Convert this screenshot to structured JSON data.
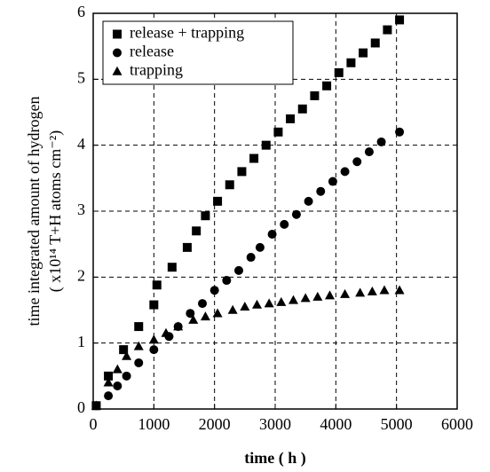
{
  "chart_data": {
    "type": "scatter",
    "xlabel": "time ( h )",
    "ylabel": [
      "time integrated amount of hydrogen",
      "( x10¹⁴ T+H atoms cm⁻²)"
    ],
    "xlim": [
      0,
      6000
    ],
    "xticks": [
      0,
      1000,
      2000,
      3000,
      4000,
      5000,
      6000
    ],
    "ylim": [
      0,
      6
    ],
    "yticks": [
      0,
      1,
      2,
      3,
      4,
      5,
      6
    ],
    "grid": true,
    "legend": "upper left",
    "series": [
      {
        "name": "release + trapping",
        "color": "#000000",
        "marker": "square",
        "x": [
          50,
          250,
          500,
          750,
          1000,
          1050,
          1300,
          1550,
          1700,
          1850,
          2050,
          2250,
          2450,
          2650,
          2850,
          3050,
          3250,
          3450,
          3650,
          3850,
          4050,
          4250,
          4450,
          4650,
          4850,
          5050
        ],
        "values": [
          0.05,
          0.5,
          0.9,
          1.25,
          1.58,
          1.88,
          2.15,
          2.45,
          2.7,
          2.93,
          3.15,
          3.4,
          3.6,
          3.8,
          4.0,
          4.2,
          4.4,
          4.55,
          4.75,
          4.9,
          5.1,
          5.25,
          5.4,
          5.55,
          5.75,
          5.9
        ]
      },
      {
        "name": "release",
        "color": "#000000",
        "marker": "circle",
        "x": [
          50,
          250,
          400,
          550,
          750,
          1000,
          1250,
          1400,
          1600,
          1800,
          2000,
          2200,
          2400,
          2600,
          2750,
          2950,
          3150,
          3350,
          3550,
          3750,
          3950,
          4150,
          4350,
          4550,
          4750,
          5050
        ],
        "values": [
          0.05,
          0.2,
          0.35,
          0.5,
          0.7,
          0.9,
          1.1,
          1.25,
          1.45,
          1.6,
          1.8,
          1.95,
          2.1,
          2.3,
          2.45,
          2.65,
          2.8,
          2.95,
          3.15,
          3.3,
          3.45,
          3.6,
          3.75,
          3.9,
          4.05,
          4.2
        ]
      },
      {
        "name": "trapping",
        "color": "#000000",
        "marker": "triangle",
        "x": [
          50,
          250,
          400,
          550,
          750,
          1000,
          1200,
          1400,
          1650,
          1850,
          2050,
          2300,
          2500,
          2700,
          2900,
          3100,
          3300,
          3500,
          3700,
          3900,
          4150,
          4400,
          4600,
          4800,
          5050
        ],
        "values": [
          0.05,
          0.4,
          0.6,
          0.8,
          0.95,
          1.05,
          1.15,
          1.25,
          1.35,
          1.4,
          1.45,
          1.5,
          1.55,
          1.58,
          1.6,
          1.62,
          1.65,
          1.68,
          1.7,
          1.72,
          1.74,
          1.76,
          1.78,
          1.8,
          1.8
        ]
      }
    ]
  }
}
